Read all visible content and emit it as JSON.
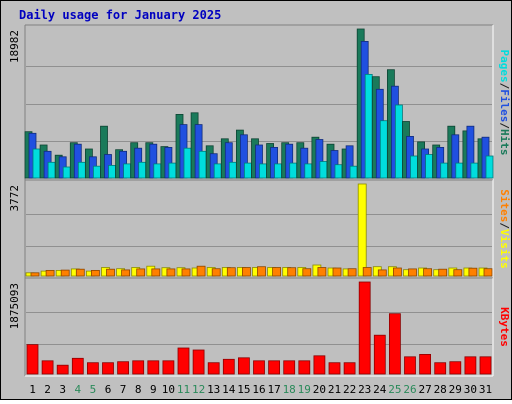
{
  "chart_data": {
    "type": "bar",
    "title": "Daily usage for January 2025",
    "categories": [
      "1",
      "2",
      "3",
      "4",
      "5",
      "6",
      "7",
      "8",
      "9",
      "10",
      "11",
      "12",
      "13",
      "14",
      "15",
      "16",
      "17",
      "18",
      "19",
      "20",
      "21",
      "22",
      "23",
      "24",
      "25",
      "26",
      "27",
      "28",
      "29",
      "30",
      "31"
    ],
    "weekend_days": [
      "4",
      "5",
      "11",
      "12",
      "18",
      "19",
      "25",
      "26"
    ],
    "panels": [
      {
        "name": "hits-files-pages",
        "ymax_label": "18982",
        "ylim": [
          0,
          18982
        ],
        "ylabel_parts": [
          {
            "text": "Pages",
            "color": "#00dddd"
          },
          {
            "text": "/",
            "color": "#202020"
          },
          {
            "text": "Files",
            "color": "#2050e0"
          },
          {
            "text": "/",
            "color": "#202020"
          },
          {
            "text": "Hits",
            "color": "#1a7a5a"
          }
        ],
        "series": [
          {
            "name": "Hits",
            "color": "#1a7a5a",
            "values": [
              5900,
              4200,
              2900,
              4500,
              3700,
              6600,
              3600,
              4500,
              4500,
              4000,
              8100,
              8300,
              4100,
              5000,
              6100,
              5000,
              4400,
              4500,
              4500,
              5200,
              4300,
              3700,
              18982,
              12900,
              13800,
              7200,
              4600,
              4200,
              6600,
              6000,
              5000
            ]
          },
          {
            "name": "Files",
            "color": "#2050e0",
            "values": [
              5700,
              3400,
              2700,
              4300,
              2700,
              3000,
              3400,
              3800,
              4300,
              3900,
              6800,
              6800,
              3100,
              4500,
              5500,
              4200,
              3900,
              4300,
              3800,
              4900,
              3500,
              4100,
              17400,
              11300,
              11700,
              5300,
              3700,
              3900,
              5500,
              6600,
              5200
            ]
          },
          {
            "name": "Pages",
            "color": "#00dddd",
            "values": [
              3700,
              2000,
              1400,
              2000,
              1500,
              1600,
              1800,
              2000,
              1800,
              1900,
              3800,
              3400,
              1800,
              2000,
              1900,
              1800,
              1800,
              1900,
              1800,
              2100,
              1700,
              1500,
              13200,
              7300,
              9300,
              2800,
              3000,
              1900,
              1900,
              1900,
              2800
            ]
          }
        ]
      },
      {
        "name": "visits-sites",
        "ymax_label": "3772",
        "ylim": [
          0,
          3772
        ],
        "ylabel_parts": [
          {
            "text": "Sites",
            "color": "#ff8000"
          },
          {
            "text": "/",
            "color": "#202020"
          },
          {
            "text": "Visits",
            "color": "#ffff00"
          }
        ],
        "series": [
          {
            "name": "Visits",
            "color": "#ffff00",
            "values": [
              130,
              200,
              230,
              290,
              200,
              350,
              300,
              350,
              400,
              340,
              340,
              330,
              350,
              350,
              350,
              350,
              350,
              350,
              350,
              450,
              330,
              290,
              3772,
              380,
              380,
              260,
              330,
              260,
              330,
              330,
              330
            ]
          },
          {
            "name": "Sites",
            "color": "#ff8000",
            "values": [
              130,
              230,
              240,
              280,
              230,
              280,
              250,
              290,
              290,
              290,
              290,
              400,
              300,
              340,
              350,
              380,
              350,
              340,
              300,
              350,
              330,
              300,
              350,
              250,
              330,
              290,
              300,
              280,
              260,
              320,
              300
            ]
          }
        ]
      },
      {
        "name": "kbytes",
        "ymax_label": "1875093",
        "ylim": [
          0,
          1875093
        ],
        "ylabel_parts": [
          {
            "text": "KBytes",
            "color": "#ff0000"
          }
        ],
        "series": [
          {
            "name": "KBytes",
            "color": "#ff0000",
            "values": [
              600000,
              270000,
              180000,
              320000,
              230000,
              230000,
              250000,
              270000,
              270000,
              270000,
              530000,
              490000,
              230000,
              300000,
              330000,
              270000,
              270000,
              270000,
              270000,
              370000,
              230000,
              230000,
              1875093,
              790000,
              1230000,
              350000,
              400000,
              230000,
              250000,
              350000,
              350000
            ]
          }
        ]
      }
    ]
  }
}
